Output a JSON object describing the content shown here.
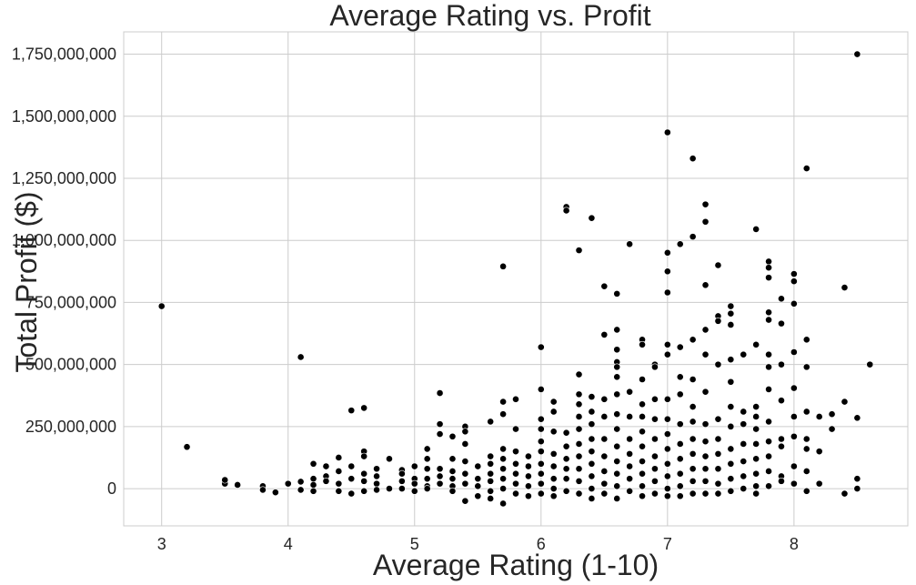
{
  "chart_data": {
    "type": "scatter",
    "title": "Average Rating vs. Profit",
    "xlabel": "Average Rating (1-10)",
    "ylabel": "Total Profit ($)",
    "xlim": [
      2.7,
      8.9
    ],
    "ylim": [
      -150000000,
      1840000000
    ],
    "xticks": [
      3,
      4,
      5,
      6,
      7,
      8
    ],
    "xtick_labels": [
      "3",
      "4",
      "5",
      "6",
      "7",
      "8"
    ],
    "yticks": [
      0,
      250000000,
      500000000,
      750000000,
      1000000000,
      1250000000,
      1500000000,
      1750000000
    ],
    "ytick_labels": [
      "0",
      "250,000,000",
      "500,000,000",
      "750,000,000",
      "1,000,000,000",
      "1,250,000,000",
      "1,500,000,000",
      "1,750,000,000"
    ],
    "grid": true,
    "point_color": "#000000",
    "points": [
      [
        3.0,
        735000000
      ],
      [
        3.2,
        168000000
      ],
      [
        3.5,
        20000000
      ],
      [
        3.5,
        35000000
      ],
      [
        3.6,
        15000000
      ],
      [
        3.8,
        10000000
      ],
      [
        3.8,
        -5000000
      ],
      [
        3.9,
        -15000000
      ],
      [
        4.0,
        20000000
      ],
      [
        4.1,
        530000000
      ],
      [
        4.1,
        28000000
      ],
      [
        4.1,
        -5000000
      ],
      [
        4.2,
        100000000
      ],
      [
        4.2,
        40000000
      ],
      [
        4.2,
        15000000
      ],
      [
        4.2,
        -10000000
      ],
      [
        4.3,
        90000000
      ],
      [
        4.3,
        50000000
      ],
      [
        4.3,
        30000000
      ],
      [
        4.4,
        125000000
      ],
      [
        4.4,
        70000000
      ],
      [
        4.4,
        20000000
      ],
      [
        4.4,
        -10000000
      ],
      [
        4.5,
        315000000
      ],
      [
        4.5,
        90000000
      ],
      [
        4.5,
        40000000
      ],
      [
        4.5,
        -20000000
      ],
      [
        4.6,
        325000000
      ],
      [
        4.6,
        150000000
      ],
      [
        4.6,
        130000000
      ],
      [
        4.6,
        60000000
      ],
      [
        4.6,
        30000000
      ],
      [
        4.6,
        -10000000
      ],
      [
        4.7,
        80000000
      ],
      [
        4.7,
        50000000
      ],
      [
        4.7,
        20000000
      ],
      [
        4.7,
        -5000000
      ],
      [
        4.8,
        120000000
      ],
      [
        4.8,
        0
      ],
      [
        4.9,
        75000000
      ],
      [
        4.9,
        60000000
      ],
      [
        4.9,
        30000000
      ],
      [
        4.9,
        0
      ],
      [
        5.0,
        90000000
      ],
      [
        5.0,
        40000000
      ],
      [
        5.0,
        20000000
      ],
      [
        5.0,
        -10000000
      ],
      [
        5.1,
        160000000
      ],
      [
        5.1,
        120000000
      ],
      [
        5.1,
        80000000
      ],
      [
        5.1,
        40000000
      ],
      [
        5.1,
        10000000
      ],
      [
        5.1,
        0
      ],
      [
        5.2,
        385000000
      ],
      [
        5.2,
        260000000
      ],
      [
        5.2,
        220000000
      ],
      [
        5.2,
        80000000
      ],
      [
        5.2,
        50000000
      ],
      [
        5.2,
        20000000
      ],
      [
        5.3,
        210000000
      ],
      [
        5.3,
        120000000
      ],
      [
        5.3,
        70000000
      ],
      [
        5.3,
        40000000
      ],
      [
        5.3,
        10000000
      ],
      [
        5.3,
        -10000000
      ],
      [
        5.4,
        250000000
      ],
      [
        5.4,
        230000000
      ],
      [
        5.4,
        180000000
      ],
      [
        5.4,
        110000000
      ],
      [
        5.4,
        60000000
      ],
      [
        5.4,
        20000000
      ],
      [
        5.4,
        -50000000
      ],
      [
        5.5,
        90000000
      ],
      [
        5.5,
        40000000
      ],
      [
        5.5,
        10000000
      ],
      [
        5.5,
        -30000000
      ],
      [
        5.6,
        270000000
      ],
      [
        5.6,
        130000000
      ],
      [
        5.6,
        100000000
      ],
      [
        5.6,
        60000000
      ],
      [
        5.6,
        30000000
      ],
      [
        5.6,
        -10000000
      ],
      [
        5.6,
        -40000000
      ],
      [
        5.7,
        895000000
      ],
      [
        5.7,
        350000000
      ],
      [
        5.7,
        300000000
      ],
      [
        5.7,
        160000000
      ],
      [
        5.7,
        120000000
      ],
      [
        5.7,
        80000000
      ],
      [
        5.7,
        40000000
      ],
      [
        5.7,
        0
      ],
      [
        5.7,
        -60000000
      ],
      [
        5.8,
        360000000
      ],
      [
        5.8,
        240000000
      ],
      [
        5.8,
        150000000
      ],
      [
        5.8,
        100000000
      ],
      [
        5.8,
        60000000
      ],
      [
        5.8,
        20000000
      ],
      [
        5.8,
        -20000000
      ],
      [
        5.9,
        130000000
      ],
      [
        5.9,
        90000000
      ],
      [
        5.9,
        50000000
      ],
      [
        5.9,
        10000000
      ],
      [
        5.9,
        -30000000
      ],
      [
        6.0,
        570000000
      ],
      [
        6.0,
        400000000
      ],
      [
        6.0,
        280000000
      ],
      [
        6.0,
        240000000
      ],
      [
        6.0,
        190000000
      ],
      [
        6.0,
        150000000
      ],
      [
        6.0,
        100000000
      ],
      [
        6.0,
        60000000
      ],
      [
        6.0,
        20000000
      ],
      [
        6.0,
        -20000000
      ],
      [
        6.1,
        350000000
      ],
      [
        6.1,
        310000000
      ],
      [
        6.1,
        230000000
      ],
      [
        6.1,
        140000000
      ],
      [
        6.1,
        90000000
      ],
      [
        6.1,
        40000000
      ],
      [
        6.1,
        0
      ],
      [
        6.1,
        -30000000
      ],
      [
        6.2,
        1135000000
      ],
      [
        6.2,
        1120000000
      ],
      [
        6.2,
        225000000
      ],
      [
        6.2,
        170000000
      ],
      [
        6.2,
        120000000
      ],
      [
        6.2,
        80000000
      ],
      [
        6.2,
        40000000
      ],
      [
        6.2,
        -10000000
      ],
      [
        6.3,
        960000000
      ],
      [
        6.3,
        460000000
      ],
      [
        6.3,
        380000000
      ],
      [
        6.3,
        340000000
      ],
      [
        6.3,
        290000000
      ],
      [
        6.3,
        240000000
      ],
      [
        6.3,
        180000000
      ],
      [
        6.3,
        130000000
      ],
      [
        6.3,
        80000000
      ],
      [
        6.3,
        30000000
      ],
      [
        6.3,
        -20000000
      ],
      [
        6.4,
        1090000000
      ],
      [
        6.4,
        370000000
      ],
      [
        6.4,
        310000000
      ],
      [
        6.4,
        260000000
      ],
      [
        6.4,
        200000000
      ],
      [
        6.4,
        150000000
      ],
      [
        6.4,
        100000000
      ],
      [
        6.4,
        50000000
      ],
      [
        6.4,
        0
      ],
      [
        6.4,
        -40000000
      ],
      [
        6.5,
        815000000
      ],
      [
        6.5,
        620000000
      ],
      [
        6.5,
        360000000
      ],
      [
        6.5,
        290000000
      ],
      [
        6.5,
        200000000
      ],
      [
        6.5,
        130000000
      ],
      [
        6.5,
        70000000
      ],
      [
        6.5,
        20000000
      ],
      [
        6.5,
        -20000000
      ],
      [
        6.6,
        785000000
      ],
      [
        6.6,
        640000000
      ],
      [
        6.6,
        560000000
      ],
      [
        6.6,
        510000000
      ],
      [
        6.6,
        490000000
      ],
      [
        6.6,
        450000000
      ],
      [
        6.6,
        380000000
      ],
      [
        6.6,
        300000000
      ],
      [
        6.6,
        240000000
      ],
      [
        6.6,
        170000000
      ],
      [
        6.6,
        110000000
      ],
      [
        6.6,
        60000000
      ],
      [
        6.6,
        10000000
      ],
      [
        6.6,
        -40000000
      ],
      [
        6.7,
        985000000
      ],
      [
        6.7,
        390000000
      ],
      [
        6.7,
        290000000
      ],
      [
        6.7,
        200000000
      ],
      [
        6.7,
        140000000
      ],
      [
        6.7,
        90000000
      ],
      [
        6.7,
        40000000
      ],
      [
        6.7,
        -10000000
      ],
      [
        6.8,
        600000000
      ],
      [
        6.8,
        580000000
      ],
      [
        6.8,
        440000000
      ],
      [
        6.8,
        340000000
      ],
      [
        6.8,
        290000000
      ],
      [
        6.8,
        230000000
      ],
      [
        6.8,
        170000000
      ],
      [
        6.8,
        110000000
      ],
      [
        6.8,
        60000000
      ],
      [
        6.8,
        10000000
      ],
      [
        6.8,
        -30000000
      ],
      [
        6.9,
        500000000
      ],
      [
        6.9,
        490000000
      ],
      [
        6.9,
        360000000
      ],
      [
        6.9,
        280000000
      ],
      [
        6.9,
        200000000
      ],
      [
        6.9,
        130000000
      ],
      [
        6.9,
        80000000
      ],
      [
        6.9,
        30000000
      ],
      [
        6.9,
        -20000000
      ],
      [
        7.0,
        1435000000
      ],
      [
        7.0,
        950000000
      ],
      [
        7.0,
        875000000
      ],
      [
        7.0,
        790000000
      ],
      [
        7.0,
        580000000
      ],
      [
        7.0,
        540000000
      ],
      [
        7.0,
        360000000
      ],
      [
        7.0,
        280000000
      ],
      [
        7.0,
        220000000
      ],
      [
        7.0,
        160000000
      ],
      [
        7.0,
        100000000
      ],
      [
        7.0,
        50000000
      ],
      [
        7.0,
        0
      ],
      [
        7.0,
        -30000000
      ],
      [
        7.1,
        985000000
      ],
      [
        7.1,
        570000000
      ],
      [
        7.1,
        450000000
      ],
      [
        7.1,
        380000000
      ],
      [
        7.1,
        260000000
      ],
      [
        7.1,
        180000000
      ],
      [
        7.1,
        120000000
      ],
      [
        7.1,
        60000000
      ],
      [
        7.1,
        10000000
      ],
      [
        7.1,
        -30000000
      ],
      [
        7.2,
        1330000000
      ],
      [
        7.2,
        1015000000
      ],
      [
        7.2,
        600000000
      ],
      [
        7.2,
        440000000
      ],
      [
        7.2,
        330000000
      ],
      [
        7.2,
        270000000
      ],
      [
        7.2,
        200000000
      ],
      [
        7.2,
        140000000
      ],
      [
        7.2,
        80000000
      ],
      [
        7.2,
        30000000
      ],
      [
        7.2,
        -20000000
      ],
      [
        7.3,
        1145000000
      ],
      [
        7.3,
        1075000000
      ],
      [
        7.3,
        820000000
      ],
      [
        7.3,
        640000000
      ],
      [
        7.3,
        540000000
      ],
      [
        7.3,
        390000000
      ],
      [
        7.3,
        260000000
      ],
      [
        7.3,
        190000000
      ],
      [
        7.3,
        130000000
      ],
      [
        7.3,
        80000000
      ],
      [
        7.3,
        30000000
      ],
      [
        7.3,
        -20000000
      ],
      [
        7.4,
        900000000
      ],
      [
        7.4,
        695000000
      ],
      [
        7.4,
        675000000
      ],
      [
        7.4,
        500000000
      ],
      [
        7.4,
        280000000
      ],
      [
        7.4,
        200000000
      ],
      [
        7.4,
        140000000
      ],
      [
        7.4,
        80000000
      ],
      [
        7.4,
        20000000
      ],
      [
        7.4,
        -20000000
      ],
      [
        7.5,
        735000000
      ],
      [
        7.5,
        705000000
      ],
      [
        7.5,
        660000000
      ],
      [
        7.5,
        520000000
      ],
      [
        7.5,
        430000000
      ],
      [
        7.5,
        330000000
      ],
      [
        7.5,
        250000000
      ],
      [
        7.5,
        160000000
      ],
      [
        7.5,
        100000000
      ],
      [
        7.5,
        40000000
      ],
      [
        7.5,
        -10000000
      ],
      [
        7.6,
        540000000
      ],
      [
        7.6,
        310000000
      ],
      [
        7.6,
        260000000
      ],
      [
        7.6,
        180000000
      ],
      [
        7.6,
        110000000
      ],
      [
        7.6,
        50000000
      ],
      [
        7.6,
        0
      ],
      [
        7.7,
        1045000000
      ],
      [
        7.7,
        580000000
      ],
      [
        7.7,
        330000000
      ],
      [
        7.7,
        290000000
      ],
      [
        7.7,
        240000000
      ],
      [
        7.7,
        180000000
      ],
      [
        7.7,
        120000000
      ],
      [
        7.7,
        60000000
      ],
      [
        7.7,
        10000000
      ],
      [
        7.7,
        -20000000
      ],
      [
        7.8,
        915000000
      ],
      [
        7.8,
        890000000
      ],
      [
        7.8,
        850000000
      ],
      [
        7.8,
        710000000
      ],
      [
        7.8,
        680000000
      ],
      [
        7.8,
        540000000
      ],
      [
        7.8,
        490000000
      ],
      [
        7.8,
        400000000
      ],
      [
        7.8,
        270000000
      ],
      [
        7.8,
        190000000
      ],
      [
        7.8,
        130000000
      ],
      [
        7.8,
        70000000
      ],
      [
        7.8,
        10000000
      ],
      [
        7.9,
        765000000
      ],
      [
        7.9,
        665000000
      ],
      [
        7.9,
        500000000
      ],
      [
        7.9,
        355000000
      ],
      [
        7.9,
        200000000
      ],
      [
        7.9,
        170000000
      ],
      [
        7.9,
        50000000
      ],
      [
        7.9,
        30000000
      ],
      [
        8.0,
        865000000
      ],
      [
        8.0,
        835000000
      ],
      [
        8.0,
        745000000
      ],
      [
        8.0,
        550000000
      ],
      [
        8.0,
        405000000
      ],
      [
        8.0,
        290000000
      ],
      [
        8.0,
        210000000
      ],
      [
        8.0,
        90000000
      ],
      [
        8.0,
        20000000
      ],
      [
        8.1,
        1290000000
      ],
      [
        8.1,
        600000000
      ],
      [
        8.1,
        490000000
      ],
      [
        8.1,
        310000000
      ],
      [
        8.1,
        200000000
      ],
      [
        8.1,
        160000000
      ],
      [
        8.1,
        70000000
      ],
      [
        8.1,
        -10000000
      ],
      [
        8.2,
        290000000
      ],
      [
        8.2,
        150000000
      ],
      [
        8.2,
        20000000
      ],
      [
        8.3,
        300000000
      ],
      [
        8.3,
        240000000
      ],
      [
        8.4,
        810000000
      ],
      [
        8.4,
        350000000
      ],
      [
        8.4,
        -20000000
      ],
      [
        8.5,
        1750000000
      ],
      [
        8.5,
        285000000
      ],
      [
        8.5,
        40000000
      ],
      [
        8.5,
        0
      ],
      [
        8.6,
        500000000
      ]
    ]
  }
}
